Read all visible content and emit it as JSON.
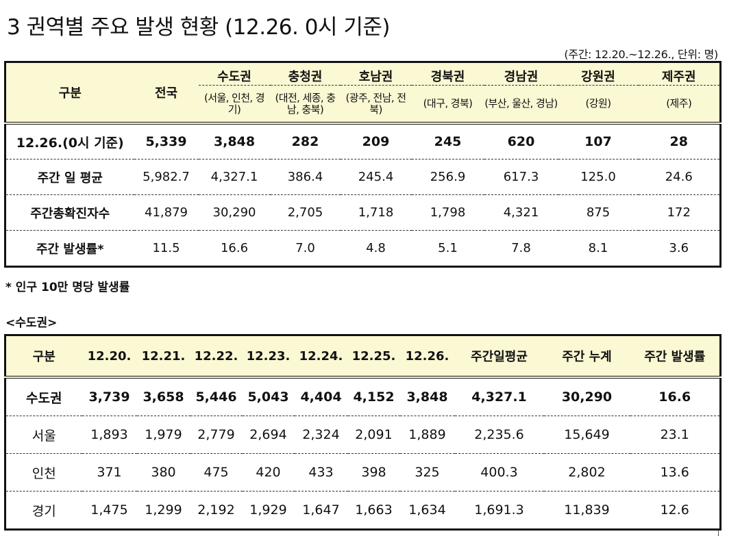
{
  "title": "3  권역별 주요 발생 현황 (12.26. 0시 기준)",
  "unit_note": "(주간: 12.20.~12.26., 단위: 명)",
  "table1": {
    "col_label": "구분",
    "col_national": "전국",
    "regions": [
      {
        "name": "수도권",
        "sub": "(서울, 인천, 경기)"
      },
      {
        "name": "충청권",
        "sub": "(대전, 세종, 충남, 충북)"
      },
      {
        "name": "호남권",
        "sub": "(광주, 전남, 전북)"
      },
      {
        "name": "경북권",
        "sub": "(대구, 경북)"
      },
      {
        "name": "경남권",
        "sub": "(부산, 울산, 경남)"
      },
      {
        "name": "강원권",
        "sub": "(강원)"
      },
      {
        "name": "제주권",
        "sub": "(제주)"
      }
    ],
    "rows": [
      {
        "label": "12.26.(0시 기준)",
        "values": [
          "5,339",
          "3,848",
          "282",
          "209",
          "245",
          "620",
          "107",
          "28"
        ]
      },
      {
        "label": "주간 일 평균",
        "values": [
          "5,982.7",
          "4,327.1",
          "386.4",
          "245.4",
          "256.9",
          "617.3",
          "125.0",
          "24.6"
        ]
      },
      {
        "label": "주간총확진자수",
        "values": [
          "41,879",
          "30,290",
          "2,705",
          "1,718",
          "1,798",
          "4,321",
          "875",
          "172"
        ]
      },
      {
        "label": "주간 발생률*",
        "values": [
          "11.5",
          "16.6",
          "7.0",
          "4.8",
          "5.1",
          "7.8",
          "8.1",
          "3.6"
        ]
      }
    ]
  },
  "footnote": "* 인구 10만 명당 발생률",
  "section_label": "<수도권>",
  "table2": {
    "headers": [
      "구분",
      "12.20.",
      "12.21.",
      "12.22.",
      "12.23.",
      "12.24.",
      "12.25.",
      "12.26.",
      "주간일평균",
      "주간 누계",
      "주간 발생률"
    ],
    "rows": [
      [
        "수도권",
        "3,739",
        "3,658",
        "5,446",
        "5,043",
        "4,404",
        "4,152",
        "3,848",
        "4,327.1",
        "30,290",
        "16.6"
      ],
      [
        "서울",
        "1,893",
        "1,979",
        "2,779",
        "2,694",
        "2,324",
        "2,091",
        "1,889",
        "2,235.6",
        "15,649",
        "23.1"
      ],
      [
        "인천",
        "371",
        "380",
        "475",
        "420",
        "433",
        "398",
        "325",
        "400.3",
        "2,802",
        "13.6"
      ],
      [
        "경기",
        "1,475",
        "1,299",
        "2,192",
        "1,929",
        "1,647",
        "1,663",
        "1,634",
        "1,691.3",
        "11,839",
        "12.6"
      ]
    ]
  },
  "colors": {
    "header_bg": "#fbf8d4",
    "border": "#111111"
  }
}
